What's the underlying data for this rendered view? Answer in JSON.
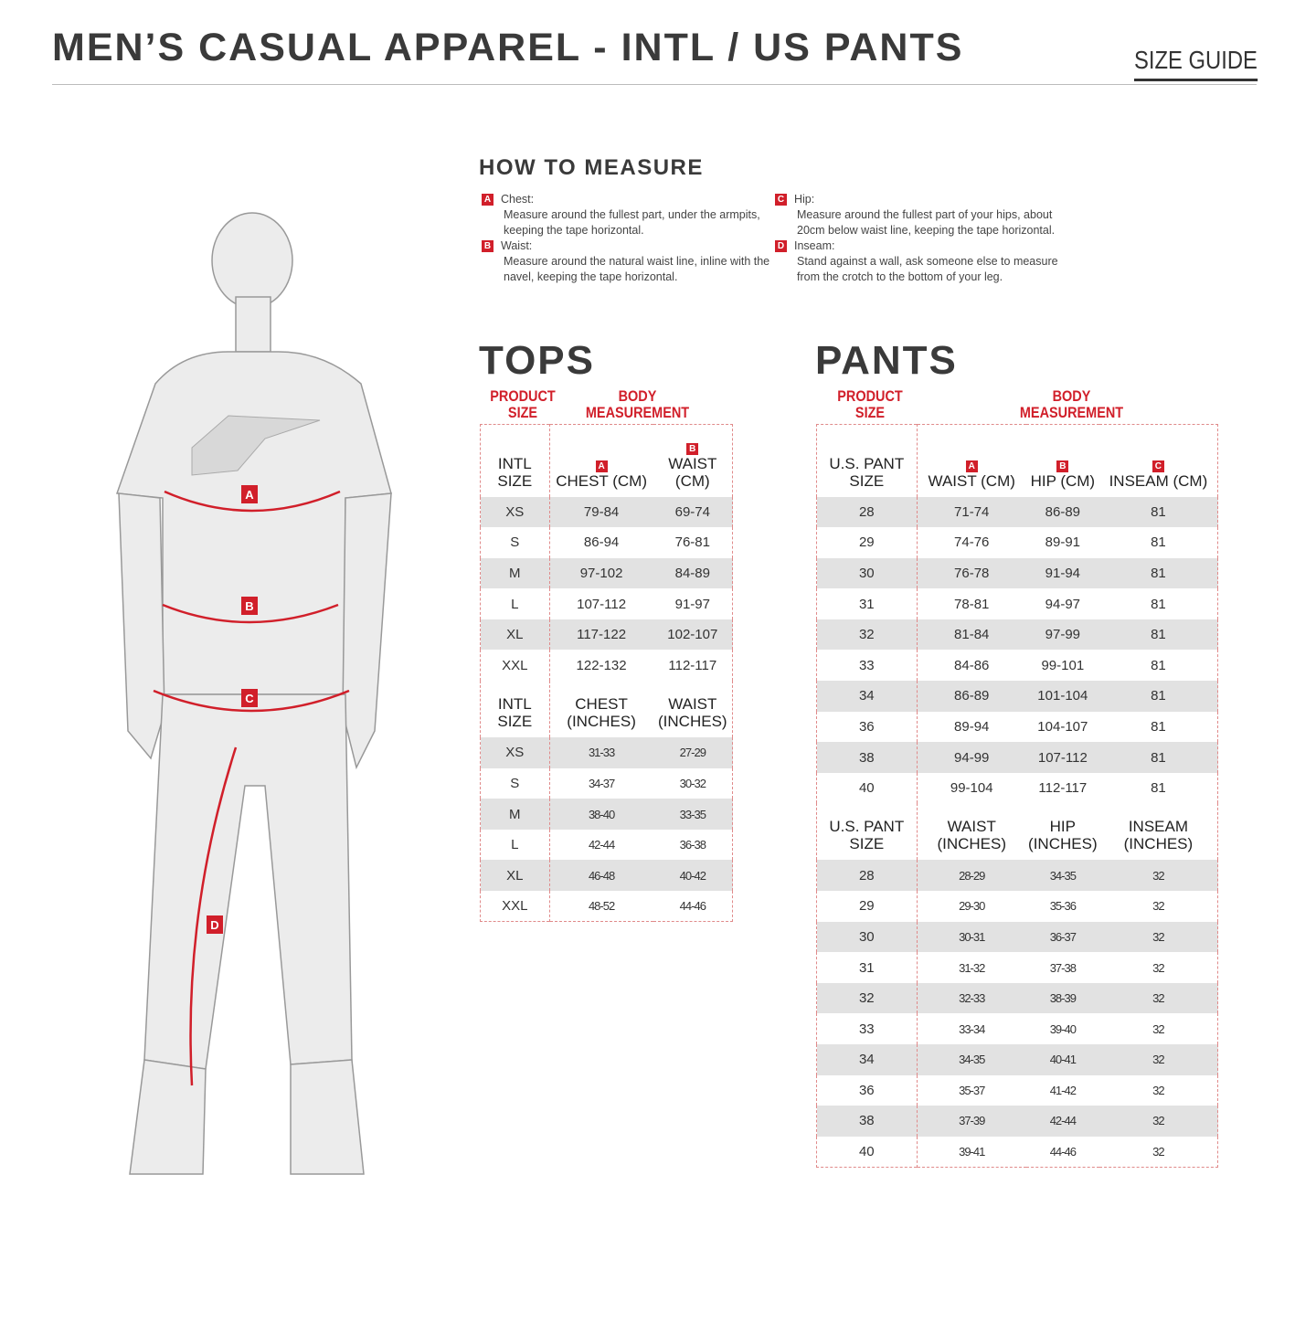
{
  "header": {
    "title": "MEN’S CASUAL APPAREL - INTL / US PANTS",
    "guide": "SIZE GUIDE"
  },
  "how_to_measure": {
    "title": "HOW TO MEASURE",
    "items": [
      {
        "badge": "A",
        "label": "Chest:",
        "text": "Measure around the fullest part, under the armpits, keeping the tape horizontal."
      },
      {
        "badge": "B",
        "label": "Waist:",
        "text": "Measure around the natural waist line, inline with the navel, keeping the tape horizontal."
      },
      {
        "badge": "C",
        "label": "Hip:",
        "text": "Measure around the fullest part of your hips, about 20cm below waist line, keeping the tape horizontal."
      },
      {
        "badge": "D",
        "label": "Inseam:",
        "text": "Stand against a wall, ask someone else to measure from the crotch to the bottom of your leg."
      }
    ]
  },
  "figure": {
    "labels": [
      "A",
      "B",
      "C",
      "D"
    ]
  },
  "tops": {
    "title": "TOPS",
    "product_size": "PRODUCT SIZE",
    "body_measurement": "BODY MEASUREMENT",
    "badges": [
      "A",
      "B"
    ],
    "cm_header": [
      "INTL SIZE",
      "CHEST (CM)",
      "WAIST (CM)"
    ],
    "cm_rows": [
      [
        "XS",
        "79-84",
        "69-74"
      ],
      [
        "S",
        "86-94",
        "76-81"
      ],
      [
        "M",
        "97-102",
        "84-89"
      ],
      [
        "L",
        "107-112",
        "91-97"
      ],
      [
        "XL",
        "117-122",
        "102-107"
      ],
      [
        "XXL",
        "122-132",
        "112-117"
      ]
    ],
    "in_header": [
      "INTL SIZE",
      "CHEST (INCHES)",
      "WAIST (INCHES)"
    ],
    "in_rows": [
      [
        "XS",
        "31-33",
        "27-29"
      ],
      [
        "S",
        "34-37",
        "30-32"
      ],
      [
        "M",
        "38-40",
        "33-35"
      ],
      [
        "L",
        "42-44",
        "36-38"
      ],
      [
        "XL",
        "46-48",
        "40-42"
      ],
      [
        "XXL",
        "48-52",
        "44-46"
      ]
    ]
  },
  "pants": {
    "title": "PANTS",
    "product_size": "PRODUCT SIZE",
    "body_measurement": "BODY MEASUREMENT",
    "badges": [
      "A",
      "B",
      "C"
    ],
    "cm_header": [
      "U.S. PANT SIZE",
      "WAIST (CM)",
      "HIP (CM)",
      "INSEAM (CM)"
    ],
    "cm_rows": [
      [
        "28",
        "71-74",
        "86-89",
        "81"
      ],
      [
        "29",
        "74-76",
        "89-91",
        "81"
      ],
      [
        "30",
        "76-78",
        "91-94",
        "81"
      ],
      [
        "31",
        "78-81",
        "94-97",
        "81"
      ],
      [
        "32",
        "81-84",
        "97-99",
        "81"
      ],
      [
        "33",
        "84-86",
        "99-101",
        "81"
      ],
      [
        "34",
        "86-89",
        "101-104",
        "81"
      ],
      [
        "36",
        "89-94",
        "104-107",
        "81"
      ],
      [
        "38",
        "94-99",
        "107-112",
        "81"
      ],
      [
        "40",
        "99-104",
        "112-117",
        "81"
      ]
    ],
    "in_header": [
      "U.S. PANT SIZE",
      "WAIST (INCHES)",
      "HIP (INCHES)",
      "INSEAM (INCHES)"
    ],
    "in_rows": [
      [
        "28",
        "28-29",
        "34-35",
        "32"
      ],
      [
        "29",
        "29-30",
        "35-36",
        "32"
      ],
      [
        "30",
        "30-31",
        "36-37",
        "32"
      ],
      [
        "31",
        "31-32",
        "37-38",
        "32"
      ],
      [
        "32",
        "32-33",
        "38-39",
        "32"
      ],
      [
        "33",
        "33-34",
        "39-40",
        "32"
      ],
      [
        "34",
        "34-35",
        "40-41",
        "32"
      ],
      [
        "36",
        "35-37",
        "41-42",
        "32"
      ],
      [
        "38",
        "37-39",
        "42-44",
        "32"
      ],
      [
        "40",
        "39-41",
        "44-46",
        "32"
      ]
    ]
  },
  "colors": {
    "accent": "#d11f2a",
    "shade": "#e2e2e2"
  }
}
